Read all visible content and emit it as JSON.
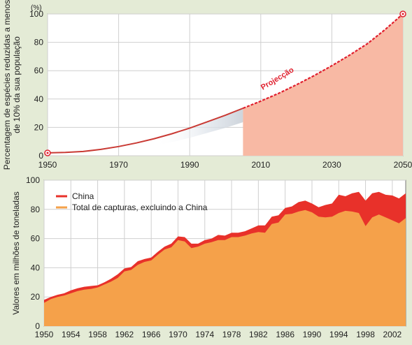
{
  "chart_data": [
    {
      "type": "line",
      "unit_label": "(%)",
      "ylabel": "Percentagem de espécies reduzidas a menos de 10% da sua população",
      "xlabel": "",
      "annotation": "Projecção",
      "xlim": [
        1950,
        2050
      ],
      "ylim": [
        0,
        100
      ],
      "x_ticks": [
        1950,
        1970,
        1990,
        2010,
        2030,
        2050
      ],
      "y_ticks": [
        0,
        20,
        40,
        60,
        80,
        100
      ],
      "grid": true,
      "series": [
        {
          "kind": "observed",
          "x": [
            1950,
            1955,
            1960,
            1965,
            1970,
            1975,
            1980,
            1985,
            1990,
            1995,
            2000,
            2005
          ],
          "y": [
            2,
            2.3,
            3,
            4.5,
            6.5,
            9,
            12,
            15.5,
            19.5,
            24,
            28.5,
            33.5
          ]
        },
        {
          "kind": "projection",
          "x": [
            2005,
            2010,
            2015,
            2020,
            2025,
            2030,
            2035,
            2040,
            2045,
            2050
          ],
          "y": [
            33.5,
            38.5,
            44,
            50,
            56.5,
            63.5,
            71,
            79,
            89,
            100
          ]
        }
      ],
      "colors": {
        "line": "#c93a34",
        "projection": "#e0202e",
        "fill": "#f8b9a4"
      }
    },
    {
      "type": "area",
      "ylabel": "Valores em milhões de toneladas",
      "xlabel": "",
      "xlim": [
        1950,
        2004
      ],
      "ylim": [
        0,
        100
      ],
      "x_ticks": [
        "1950",
        "1954",
        "1958",
        "1962",
        "1966",
        "1970",
        "1974",
        "1978",
        "1982",
        "1986",
        "1990",
        "1994",
        "1998",
        "2002"
      ],
      "y_ticks": [
        0,
        20,
        40,
        60,
        80,
        100
      ],
      "grid": true,
      "legend_position": "top-left",
      "x": [
        1950,
        1951,
        1952,
        1953,
        1954,
        1955,
        1956,
        1957,
        1958,
        1959,
        1960,
        1961,
        1962,
        1963,
        1964,
        1965,
        1966,
        1967,
        1968,
        1969,
        1970,
        1971,
        1972,
        1973,
        1974,
        1975,
        1976,
        1977,
        1978,
        1979,
        1980,
        1981,
        1982,
        1983,
        1984,
        1985,
        1986,
        1987,
        1988,
        1989,
        1990,
        1991,
        1992,
        1993,
        1994,
        1995,
        1996,
        1997,
        1998,
        1999,
        2000,
        2001,
        2002,
        2003,
        2004
      ],
      "series": [
        {
          "name": "China",
          "color": "#e8312a",
          "values": [
            18,
            20,
            21.5,
            22.5,
            24.5,
            26,
            27,
            27.5,
            28,
            30,
            32.5,
            35.5,
            39.5,
            40.5,
            44.5,
            46,
            47,
            51,
            54.5,
            56.5,
            61.5,
            61,
            56.5,
            56.5,
            59,
            60,
            62.5,
            62,
            64,
            64,
            65,
            67,
            69,
            69,
            75,
            76,
            81,
            82,
            85,
            86,
            84,
            81.5,
            83,
            84,
            90,
            89,
            91,
            92,
            86,
            91,
            92,
            90,
            89.5,
            87.5,
            91
          ]
        },
        {
          "name": "Total de capturas, excluindo a China",
          "color": "#f5a14a",
          "values": [
            16,
            18.5,
            20,
            21,
            22.5,
            24,
            25,
            25.5,
            26.5,
            28.5,
            30.5,
            33,
            37.5,
            38.5,
            42,
            44,
            45,
            49,
            52.5,
            54,
            59,
            58,
            53.5,
            54.5,
            56.5,
            57.5,
            59,
            59,
            61,
            61,
            62,
            63.5,
            64.5,
            64,
            70,
            71,
            76.5,
            77,
            78.5,
            79.5,
            78,
            75,
            74.5,
            75,
            77.5,
            79,
            78.5,
            77.5,
            68.5,
            74.5,
            76.5,
            74.5,
            72.5,
            70.5,
            74
          ]
        }
      ]
    }
  ]
}
